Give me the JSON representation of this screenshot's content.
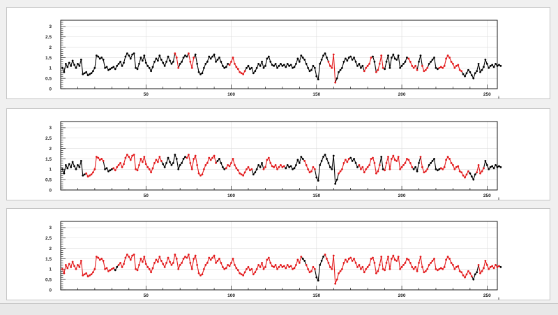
{
  "chart_data": [
    {
      "type": "line",
      "x_axis": {
        "title": "i",
        "min": 0,
        "max": 256,
        "major_ticks": [
          50,
          100,
          150,
          200,
          250
        ]
      },
      "y_axis": {
        "min": 0,
        "max": 3.3,
        "major_ticks": [
          0,
          0.5,
          1,
          1.5,
          2,
          2.5,
          3
        ],
        "tick_labels": [
          "0",
          "0.5",
          "1",
          "1.5",
          "2",
          "2.5",
          "3"
        ]
      },
      "grid": true,
      "colors": {
        "in_selection": "#e31a1c",
        "outside": "#000000"
      },
      "selected_ranges": [
        [
          66,
          68
        ],
        [
          74,
          77
        ],
        [
          98,
          107
        ],
        [
          156,
          160
        ],
        [
          177,
          181
        ],
        [
          184,
          188
        ],
        [
          203,
          208
        ],
        [
          211,
          214
        ],
        [
          221,
          234
        ]
      ]
    },
    {
      "type": "line",
      "x_axis": {
        "title": "i",
        "min": 0,
        "max": 256,
        "major_ticks": [
          50,
          100,
          150,
          200,
          250
        ]
      },
      "y_axis": {
        "min": 0,
        "max": 3.3,
        "major_ticks": [
          0,
          0.5,
          1,
          1.5,
          2,
          2.5,
          3
        ],
        "tick_labels": [
          "0",
          "0.5",
          "1",
          "1.5",
          "2",
          "2.5",
          "3"
        ]
      },
      "grid": true,
      "colors": {
        "in_selection": "#e31a1c",
        "outside": "#000000"
      },
      "selected_ranges": [
        [
          14,
          19
        ],
        [
          20,
          24
        ],
        [
          30,
          58
        ],
        [
          73,
          90
        ],
        [
          96,
          111
        ],
        [
          118,
          130
        ],
        [
          142,
          148
        ],
        [
          162,
          168
        ],
        [
          174,
          186
        ],
        [
          189,
          205
        ],
        [
          210,
          214
        ],
        [
          222,
          238
        ],
        [
          243,
          247
        ]
      ]
    },
    {
      "type": "line",
      "x_axis": {
        "title": "i",
        "min": 0,
        "max": 256,
        "major_ticks": [
          50,
          100,
          150,
          200,
          250
        ]
      },
      "y_axis": {
        "min": 0,
        "max": 3.3,
        "major_ticks": [
          0,
          0.5,
          1,
          1.5,
          2,
          2.5,
          3
        ],
        "tick_labels": [
          "0",
          "0.5",
          "1",
          "1.5",
          "2",
          "2.5",
          "3"
        ]
      },
      "grid": true,
      "colors": {
        "in_selection": "#e31a1c",
        "outside": "#000000"
      },
      "selected_ranges": [
        [
          0,
          30
        ],
        [
          33,
          140
        ],
        [
          143,
          148
        ],
        [
          154,
          240
        ],
        [
          244,
          256
        ]
      ]
    }
  ],
  "series_values": [
    1.0,
    0.8,
    1.2,
    1.05,
    1.25,
    1.1,
    1.35,
    1.15,
    1.0,
    1.2,
    1.1,
    1.4,
    0.7,
    0.75,
    0.8,
    0.65,
    0.7,
    0.75,
    0.85,
    1.0,
    1.6,
    1.55,
    1.45,
    1.5,
    1.4,
    1.0,
    1.05,
    0.9,
    0.95,
    1.0,
    1.05,
    0.95,
    1.1,
    1.2,
    1.3,
    1.1,
    1.25,
    1.55,
    1.7,
    1.6,
    1.45,
    1.65,
    1.7,
    1.0,
    0.95,
    1.2,
    1.5,
    1.35,
    1.6,
    1.25,
    1.1,
    1.0,
    0.85,
    1.05,
    1.3,
    1.45,
    1.35,
    1.6,
    1.4,
    1.25,
    1.1,
    1.3,
    1.55,
    1.35,
    1.2,
    1.3,
    1.7,
    1.5,
    1.0,
    1.2,
    1.3,
    1.5,
    1.6,
    1.55,
    1.7,
    1.3,
    1.0,
    1.5,
    1.65,
    1.2,
    0.8,
    0.7,
    0.75,
    1.0,
    1.2,
    1.3,
    1.55,
    1.45,
    1.55,
    1.65,
    1.3,
    1.4,
    1.5,
    1.3,
    1.1,
    1.0,
    1.05,
    1.2,
    1.15,
    1.3,
    1.5,
    1.2,
    1.05,
    0.95,
    0.8,
    0.75,
    0.7,
    0.85,
    1.0,
    1.1,
    0.95,
    1.0,
    0.75,
    0.85,
    1.0,
    1.2,
    1.1,
    1.3,
    1.0,
    1.1,
    1.45,
    1.55,
    1.3,
    1.15,
    1.1,
    1.2,
    1.0,
    1.1,
    1.2,
    1.1,
    1.15,
    1.05,
    1.2,
    1.1,
    1.15,
    1.0,
    1.05,
    1.2,
    1.45,
    1.3,
    1.6,
    1.5,
    1.4,
    1.2,
    1.0,
    0.85,
    0.9,
    1.1,
    1.0,
    0.6,
    0.45,
    1.2,
    1.4,
    1.6,
    1.7,
    1.5,
    1.3,
    1.1,
    1.0,
    1.65,
    0.3,
    0.5,
    0.8,
    0.9,
    1.0,
    1.3,
    1.45,
    1.35,
    1.5,
    1.55,
    1.4,
    1.5,
    1.3,
    1.1,
    1.2,
    1.0,
    1.1,
    0.85,
    1.0,
    1.1,
    1.2,
    1.5,
    1.55,
    1.3,
    0.8,
    0.9,
    1.2,
    1.6,
    1.0,
    0.95,
    1.3,
    1.6,
    1.0,
    1.5,
    1.65,
    1.45,
    1.4,
    1.6,
    1.0,
    1.1,
    1.2,
    1.3,
    1.5,
    1.45,
    1.3,
    1.1,
    1.0,
    1.1,
    0.9,
    1.3,
    1.6,
    1.1,
    0.85,
    0.9,
    1.0,
    1.2,
    1.3,
    1.4,
    1.5,
    1.0,
    0.95,
    1.0,
    1.05,
    1.0,
    1.1,
    1.45,
    1.6,
    1.5,
    1.3,
    1.2,
    1.0,
    1.1,
    1.15,
    0.9,
    0.85,
    0.7,
    0.6,
    0.75,
    0.9,
    0.8,
    0.65,
    0.5,
    0.75,
    0.85,
    1.2,
    0.8,
    0.9,
    1.05,
    1.4,
    1.2,
    1.0,
    1.1,
    1.15,
    1.05,
    1.2,
    1.1,
    1.15,
    1.1
  ]
}
